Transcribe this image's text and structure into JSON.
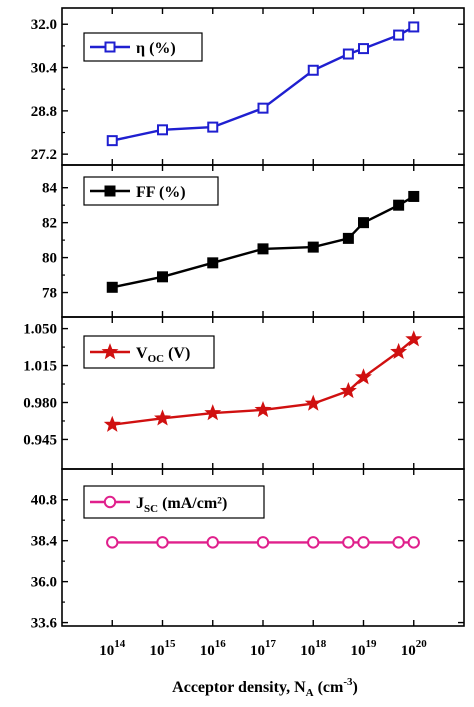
{
  "chart_data": {
    "type": "line",
    "xlabel": {
      "main": "Acceptor density, N",
      "sub": "A",
      "unit_pre": " (cm",
      "unit_sup": "-3",
      "unit_post": ")"
    },
    "x": [
      100000000000000.0,
      1000000000000000.0,
      1e+16,
      1e+17,
      1e+18,
      5e+18,
      1e+19,
      5e+19,
      1e+20
    ],
    "x_scale": "log",
    "xlim": [
      10000000000000.0,
      1e+21
    ],
    "x_ticks": [
      {
        "base": "10",
        "exp": "14",
        "value": 100000000000000.0
      },
      {
        "base": "10",
        "exp": "15",
        "value": 1000000000000000.0
      },
      {
        "base": "10",
        "exp": "16",
        "value": 1e+16
      },
      {
        "base": "10",
        "exp": "17",
        "value": 1e+17
      },
      {
        "base": "10",
        "exp": "18",
        "value": 1e+18
      },
      {
        "base": "10",
        "exp": "19",
        "value": 1e+19
      },
      {
        "base": "10",
        "exp": "20",
        "value": 1e+20
      }
    ],
    "panels": [
      {
        "id": "eta",
        "legend": {
          "main": "η (%)",
          "sub": "",
          "post": ""
        },
        "color": "#1f1fd0",
        "marker": "open-square",
        "ylim": [
          26.8,
          32.6
        ],
        "yticks": [
          "32.0",
          "30.4",
          "28.8",
          "27.2"
        ],
        "ytick_values": [
          32.0,
          30.4,
          28.8,
          27.2
        ],
        "values": [
          27.7,
          28.1,
          28.2,
          28.9,
          30.3,
          30.9,
          31.1,
          31.6,
          31.9
        ]
      },
      {
        "id": "ff",
        "legend": {
          "main": "FF (%)",
          "sub": "",
          "post": ""
        },
        "color": "#000000",
        "marker": "filled-square",
        "ylim": [
          76.6,
          85.3
        ],
        "yticks": [
          "84",
          "82",
          "80",
          "78"
        ],
        "ytick_values": [
          84,
          82,
          80,
          78
        ],
        "values": [
          78.3,
          78.9,
          79.7,
          80.5,
          80.6,
          81.1,
          82.0,
          83.0,
          83.5
        ]
      },
      {
        "id": "voc",
        "legend": {
          "main": "V",
          "sub": "OC",
          "post": " (V)"
        },
        "color": "#d01010",
        "marker": "star",
        "ylim": [
          0.917,
          1.061
        ],
        "yticks": [
          "1.050",
          "1.015",
          "0.980",
          "0.945"
        ],
        "ytick_values": [
          1.05,
          1.015,
          0.98,
          0.945
        ],
        "values": [
          0.959,
          0.965,
          0.97,
          0.973,
          0.979,
          0.991,
          1.004,
          1.028,
          1.04
        ]
      },
      {
        "id": "jsc",
        "legend": {
          "main": "J",
          "sub": "SC",
          "post": " (mA/cm²)"
        },
        "color": "#e0208c",
        "marker": "open-circle",
        "ylim": [
          33.4,
          42.6
        ],
        "yticks": [
          "40.8",
          "38.4",
          "36.0",
          "33.6"
        ],
        "ytick_values": [
          40.8,
          38.4,
          36.0,
          33.6
        ],
        "values": [
          38.3,
          38.3,
          38.3,
          38.3,
          38.3,
          38.3,
          38.3,
          38.3,
          38.3
        ]
      }
    ]
  }
}
